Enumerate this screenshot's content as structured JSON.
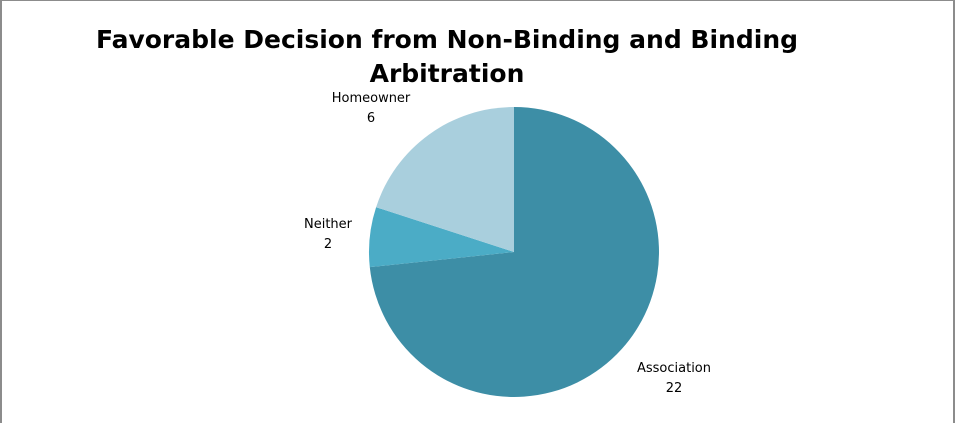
{
  "chart_data": {
    "type": "pie",
    "title_line1": "Favorable Decision  from Non-Binding and Binding",
    "title_line2": "Arbitration",
    "slices": [
      {
        "label": "Association",
        "value": 22,
        "color": "#3d8ea6"
      },
      {
        "label": "Neither",
        "value": 2,
        "color": "#4bacc6"
      },
      {
        "label": "Homeowner",
        "value": 6,
        "color": "#a9cfdd"
      }
    ],
    "legend": "none"
  }
}
